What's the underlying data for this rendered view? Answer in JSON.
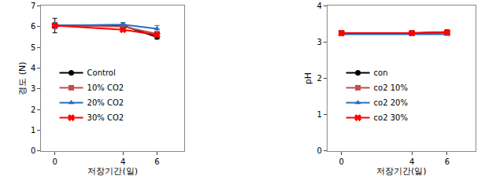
{
  "chart_data": [
    {
      "type": "line",
      "x_label": "저장기간(일)",
      "y_label": "경도 (N)",
      "x": [
        0,
        4,
        6
      ],
      "xlim": [
        -0.8,
        7.6
      ],
      "xticks": [
        0,
        4,
        6
      ],
      "ylim": [
        0,
        7
      ],
      "yticks": [
        0,
        1,
        2,
        3,
        4,
        5,
        6,
        7
      ],
      "grid": false,
      "legend": "lower left",
      "series": [
        {
          "name": "Control",
          "color": "#000000",
          "marker": "circle",
          "values": [
            6.05,
            6.05,
            5.5
          ],
          "error": [
            0.35,
            0.15,
            0.1
          ]
        },
        {
          "name": "10% CO2",
          "color": "#c0504d",
          "marker": "square",
          "values": [
            6.05,
            6.0,
            5.65
          ]
        },
        {
          "name": "20% CO2",
          "color": "#2a6ebb",
          "marker": "triangle-up",
          "values": [
            6.05,
            6.1,
            5.9
          ],
          "error": [
            0.15,
            0.1,
            0.15
          ]
        },
        {
          "name": "30% CO2",
          "color": "#ff0000",
          "marker": "x",
          "values": [
            6.05,
            5.85,
            5.6
          ]
        }
      ]
    },
    {
      "type": "line",
      "x_label": "저장기간(일)",
      "y_label": "pH",
      "x": [
        0,
        4,
        6
      ],
      "xlim": [
        -0.8,
        7.6
      ],
      "xticks": [
        0,
        4,
        6
      ],
      "ylim": [
        0,
        4
      ],
      "yticks": [
        0,
        1,
        2,
        3,
        4
      ],
      "grid": false,
      "legend": "lower left",
      "series": [
        {
          "name": "con",
          "color": "#000000",
          "marker": "circle",
          "values": [
            3.25,
            3.25,
            3.28
          ]
        },
        {
          "name": "co2 10%",
          "color": "#c0504d",
          "marker": "square",
          "values": [
            3.25,
            3.25,
            3.25
          ]
        },
        {
          "name": "co2 20%",
          "color": "#2a6ebb",
          "marker": "triangle-up",
          "values": [
            3.22,
            3.22,
            3.22
          ]
        },
        {
          "name": "co2 30%",
          "color": "#ff0000",
          "marker": "x",
          "values": [
            3.25,
            3.25,
            3.27
          ]
        }
      ]
    }
  ]
}
